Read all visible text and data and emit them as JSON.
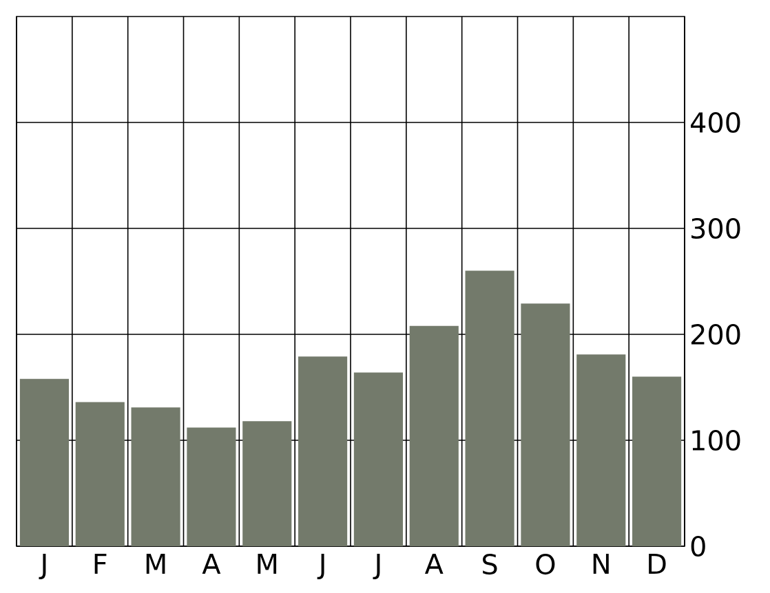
{
  "chart_data": {
    "type": "bar",
    "categories": [
      "J",
      "F",
      "M",
      "A",
      "M",
      "J",
      "J",
      "A",
      "S",
      "O",
      "N",
      "D"
    ],
    "values": [
      158,
      136,
      131,
      112,
      118,
      179,
      164,
      208,
      260,
      229,
      181,
      160
    ],
    "color": "#737a6b",
    "ylim": [
      0,
      500
    ],
    "yticks": [
      0,
      100,
      200,
      300,
      400
    ],
    "grid": true
  }
}
